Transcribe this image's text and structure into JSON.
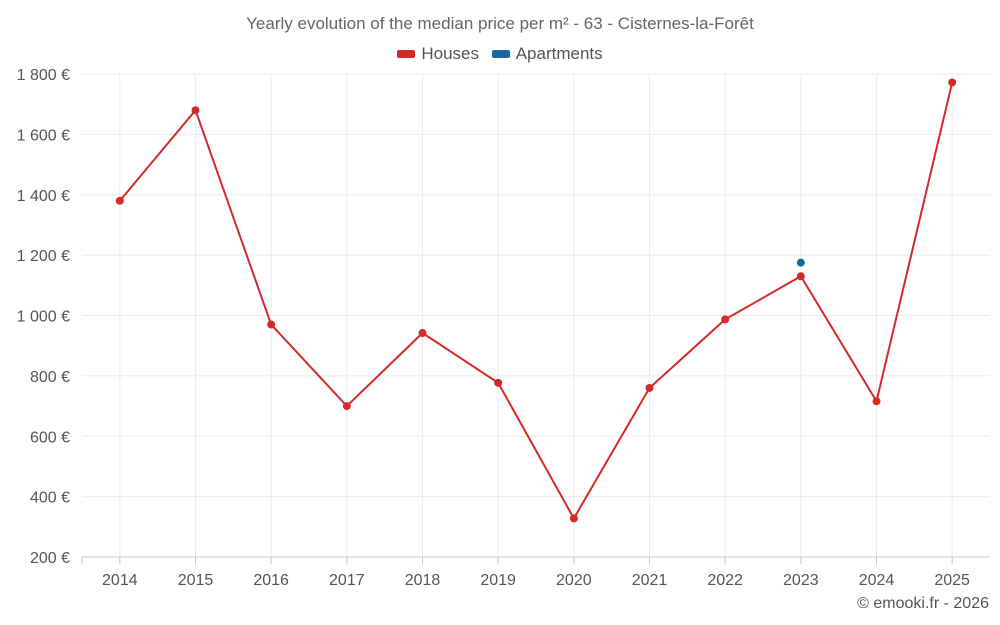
{
  "chart_data": {
    "type": "line",
    "title": "Yearly evolution of the median price per m² - 63 - Cisternes-la-Forêt",
    "categories": [
      "2014",
      "2015",
      "2016",
      "2017",
      "2018",
      "2019",
      "2020",
      "2021",
      "2022",
      "2023",
      "2024",
      "2025"
    ],
    "series": [
      {
        "name": "Houses",
        "color": "#d42a2a",
        "values": [
          1380,
          1680,
          970,
          700,
          942,
          777,
          328,
          760,
          987,
          1130,
          716,
          1772
        ]
      },
      {
        "name": "Apartments",
        "color": "#1769a0",
        "values": [
          null,
          null,
          null,
          null,
          null,
          null,
          null,
          null,
          null,
          1175,
          null,
          null
        ]
      }
    ],
    "ylim": [
      200,
      1800
    ],
    "yticks": [
      200,
      400,
      600,
      800,
      1000,
      1200,
      1400,
      1600,
      1800
    ],
    "ytick_labels": [
      "200 €",
      "400 €",
      "600 €",
      "800 €",
      "1 000 €",
      "1 200 €",
      "1 400 €",
      "1 600 €",
      "1 800 €"
    ],
    "xlabel": "",
    "ylabel": "",
    "grid": true,
    "legend_position": "top-center"
  },
  "credit": "© emooki.fr - 2026"
}
